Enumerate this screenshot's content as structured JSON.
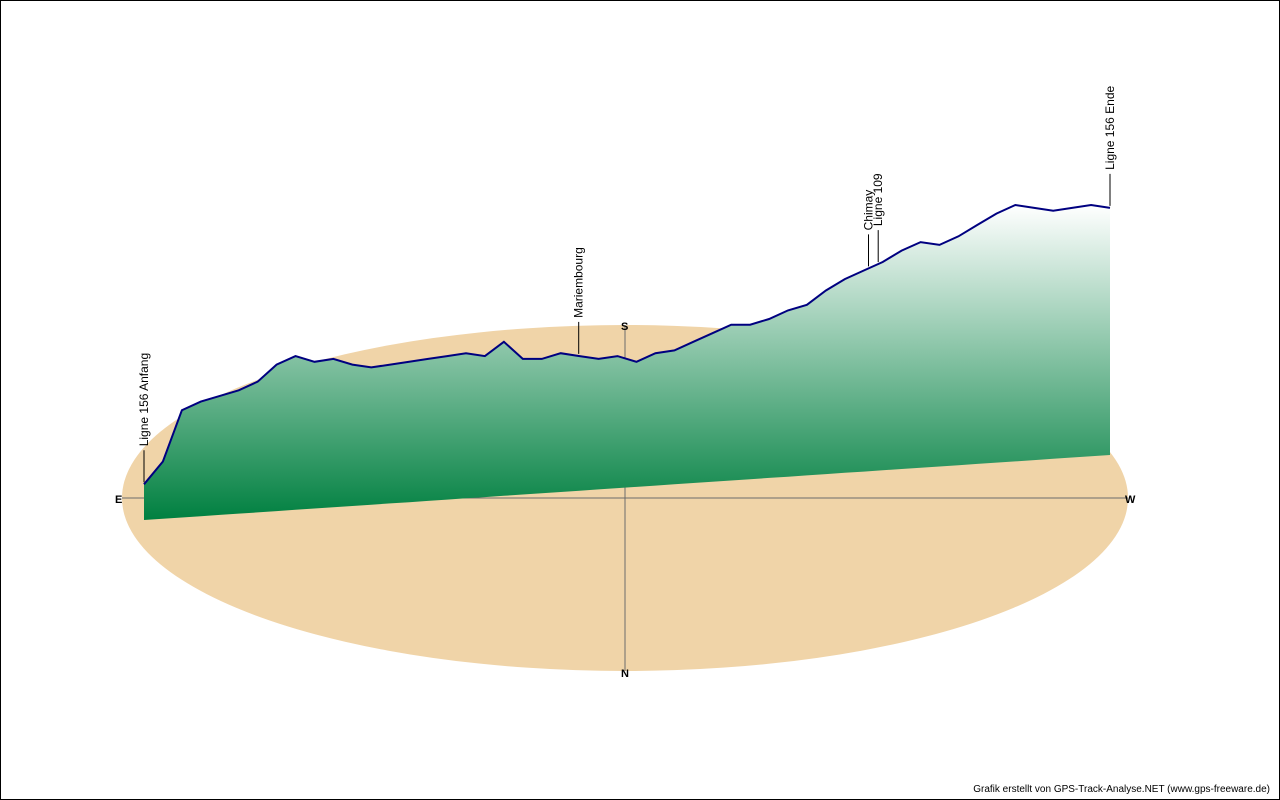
{
  "chart_data": {
    "type": "area",
    "view": "3d-elevation-profile-over-compass-ellipse",
    "colors": {
      "ground": "#f0d4a8",
      "line": "#000080",
      "fill_top": "#ffffff",
      "fill_bottom": "#008040",
      "axis": "#6b6b6b"
    },
    "compass": {
      "east": "E",
      "west": "W",
      "south": "S",
      "north": "N"
    },
    "x_axis_direction": "E-to-W",
    "profile_relative_height": [
      0.02,
      0.1,
      0.28,
      0.31,
      0.33,
      0.35,
      0.38,
      0.44,
      0.47,
      0.45,
      0.46,
      0.44,
      0.43,
      0.44,
      0.45,
      0.46,
      0.47,
      0.48,
      0.47,
      0.52,
      0.46,
      0.46,
      0.48,
      0.47,
      0.46,
      0.47,
      0.45,
      0.48,
      0.49,
      0.52,
      0.55,
      0.58,
      0.58,
      0.6,
      0.63,
      0.65,
      0.7,
      0.74,
      0.77,
      0.8,
      0.84,
      0.87,
      0.86,
      0.89,
      0.93,
      0.97,
      1.0,
      0.99,
      0.98,
      0.99,
      1.0,
      0.99
    ],
    "waypoints": [
      {
        "label": "Ligne 156 Anfang",
        "position": 0.0
      },
      {
        "label": "Mariembourg",
        "position": 0.45
      },
      {
        "label": "Chimay",
        "position": 0.75
      },
      {
        "label": "Ligne 109",
        "position": 0.76
      },
      {
        "label": "Ligne 156 Ende",
        "position": 1.0
      }
    ]
  },
  "credit": "Grafik erstellt von GPS-Track-Analyse.NET (www.gps-freeware.de)"
}
